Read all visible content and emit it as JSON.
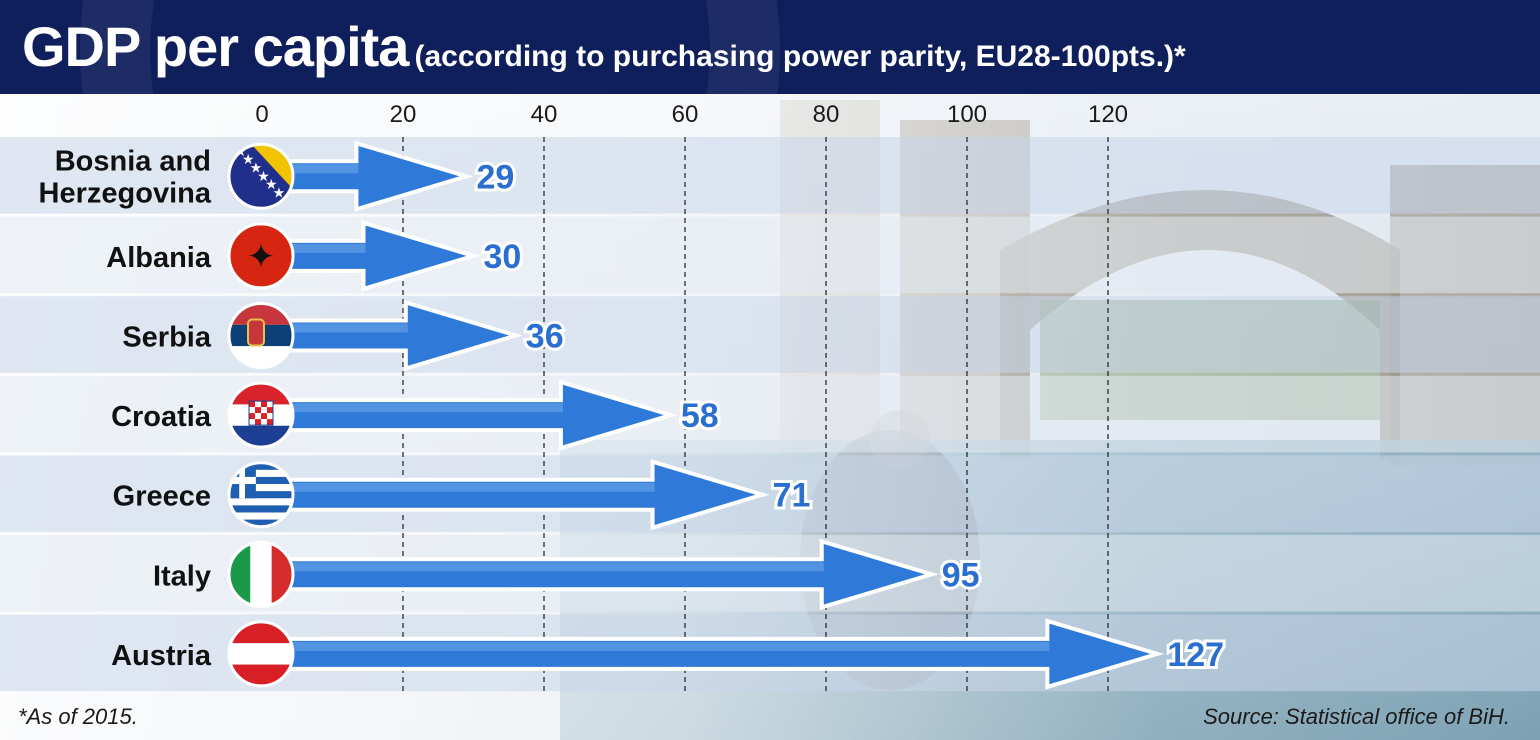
{
  "header": {
    "title": "GDP per capita",
    "subtitle": "(according to purchasing power parity, EU28-100pts.)*"
  },
  "footer": {
    "footnote": "*As of 2015.",
    "source": "Source: Statistical office of BiH."
  },
  "colors": {
    "header_bg": "#0f1f5c",
    "arrow_fill": "#2f7ad8",
    "arrow_outline": "#ffffff",
    "value_text": "#2a6fd0"
  },
  "chart_data": {
    "type": "bar",
    "orientation": "horizontal",
    "title": "GDP per capita",
    "subtitle": "(according to purchasing power parity, EU28-100pts.)*",
    "categories": [
      "Bosnia and Herzegovina",
      "Albania",
      "Serbia",
      "Croatia",
      "Greece",
      "Italy",
      "Austria"
    ],
    "category_lines": [
      [
        "Bosnia and",
        "Herzegovina"
      ],
      [
        "Albania"
      ],
      [
        "Serbia"
      ],
      [
        "Croatia"
      ],
      [
        "Greece"
      ],
      [
        "Italy"
      ],
      [
        "Austria"
      ]
    ],
    "flags": [
      "bosnia",
      "albania",
      "serbia",
      "croatia",
      "greece",
      "italy",
      "austria"
    ],
    "values": [
      29,
      30,
      36,
      58,
      71,
      95,
      127
    ],
    "value_labels": [
      "29",
      "30",
      "36",
      "58",
      "71",
      "95",
      "127"
    ],
    "xticks": [
      0,
      20,
      40,
      60,
      80,
      100,
      120
    ],
    "xtick_labels": [
      "0",
      "20",
      "40",
      "60",
      "80",
      "100",
      "120"
    ],
    "xlim": [
      0,
      127
    ],
    "grid": "vertical dashed",
    "legend": "none",
    "mark": "arrow"
  }
}
